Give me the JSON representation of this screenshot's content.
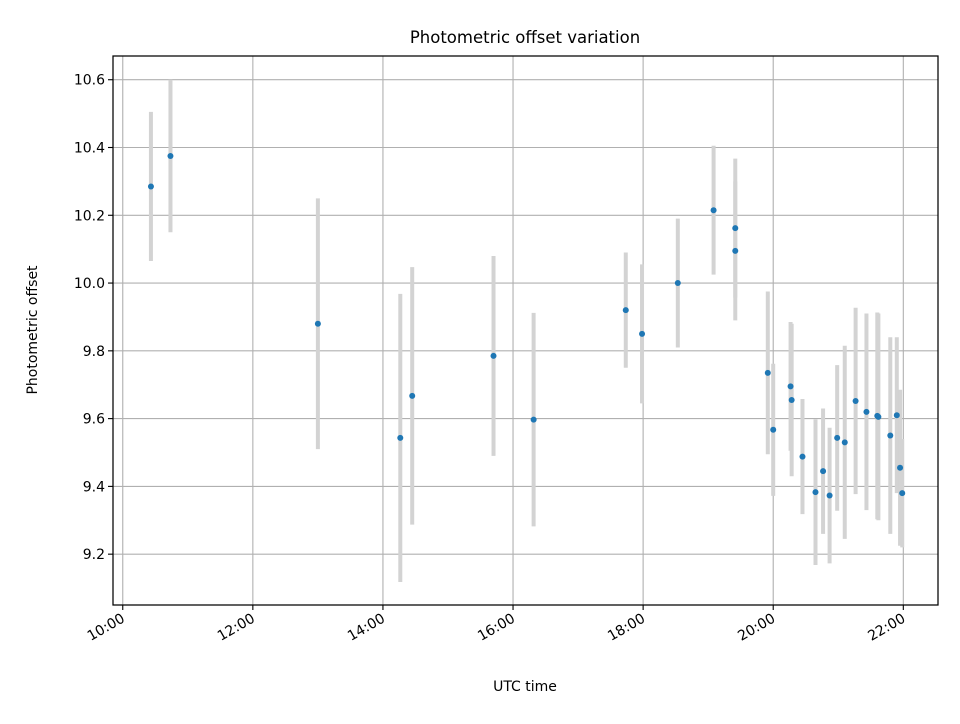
{
  "chart_data": {
    "type": "scatter",
    "title": "Photometric offset variation",
    "xlabel": "UTC time",
    "ylabel": "Photometric offset",
    "x_ticks": [
      "10:00",
      "12:00",
      "14:00",
      "16:00",
      "18:00",
      "20:00",
      "22:00"
    ],
    "y_ticks": [
      "9.2",
      "9.4",
      "9.6",
      "9.8",
      "10.0",
      "10.2",
      "10.4",
      "10.6"
    ],
    "xlim": [
      "09:51",
      "22:32"
    ],
    "ylim": [
      9.05,
      10.67
    ],
    "grid": true,
    "series": [
      {
        "marker_color": "#1f77b4",
        "errorbar_color": "#d3d3d3",
        "points": [
          {
            "x": "10:26",
            "y": 10.285,
            "yerr": 0.22
          },
          {
            "x": "10:44",
            "y": 10.375,
            "yerr": 0.225
          },
          {
            "x": "13:00",
            "y": 9.88,
            "yerr": 0.37
          },
          {
            "x": "14:16",
            "y": 9.543,
            "yerr": 0.425
          },
          {
            "x": "14:27",
            "y": 9.667,
            "yerr": 0.38
          },
          {
            "x": "15:42",
            "y": 9.785,
            "yerr": 0.295
          },
          {
            "x": "16:19",
            "y": 9.597,
            "yerr": 0.315
          },
          {
            "x": "17:44",
            "y": 9.92,
            "yerr": 0.17
          },
          {
            "x": "17:59",
            "y": 9.85,
            "yerr": 0.205
          },
          {
            "x": "18:32",
            "y": 10.0,
            "yerr": 0.19
          },
          {
            "x": "19:05",
            "y": 10.215,
            "yerr": 0.19
          },
          {
            "x": "19:25",
            "y": 10.162,
            "yerr": 0.205
          },
          {
            "x": "19:25",
            "y": 10.095,
            "yerr": 0.205
          },
          {
            "x": "19:55",
            "y": 9.735,
            "yerr": 0.24
          },
          {
            "x": "20:00",
            "y": 9.567,
            "yerr": 0.195
          },
          {
            "x": "20:16",
            "y": 9.695,
            "yerr": 0.19
          },
          {
            "x": "20:17",
            "y": 9.655,
            "yerr": 0.225
          },
          {
            "x": "20:27",
            "y": 9.488,
            "yerr": 0.17
          },
          {
            "x": "20:39",
            "y": 9.383,
            "yerr": 0.215
          },
          {
            "x": "20:46",
            "y": 9.445,
            "yerr": 0.185
          },
          {
            "x": "20:52",
            "y": 9.373,
            "yerr": 0.2
          },
          {
            "x": "20:59",
            "y": 9.543,
            "yerr": 0.215
          },
          {
            "x": "21:06",
            "y": 9.53,
            "yerr": 0.285
          },
          {
            "x": "21:16",
            "y": 9.652,
            "yerr": 0.275
          },
          {
            "x": "21:26",
            "y": 9.62,
            "yerr": 0.29
          },
          {
            "x": "21:36",
            "y": 9.608,
            "yerr": 0.305
          },
          {
            "x": "21:37",
            "y": 9.605,
            "yerr": 0.305
          },
          {
            "x": "21:48",
            "y": 9.55,
            "yerr": 0.29
          },
          {
            "x": "21:54",
            "y": 9.61,
            "yerr": 0.23
          },
          {
            "x": "21:57",
            "y": 9.455,
            "yerr": 0.23
          },
          {
            "x": "21:59",
            "y": 9.38,
            "yerr": 0.16
          }
        ]
      }
    ]
  }
}
